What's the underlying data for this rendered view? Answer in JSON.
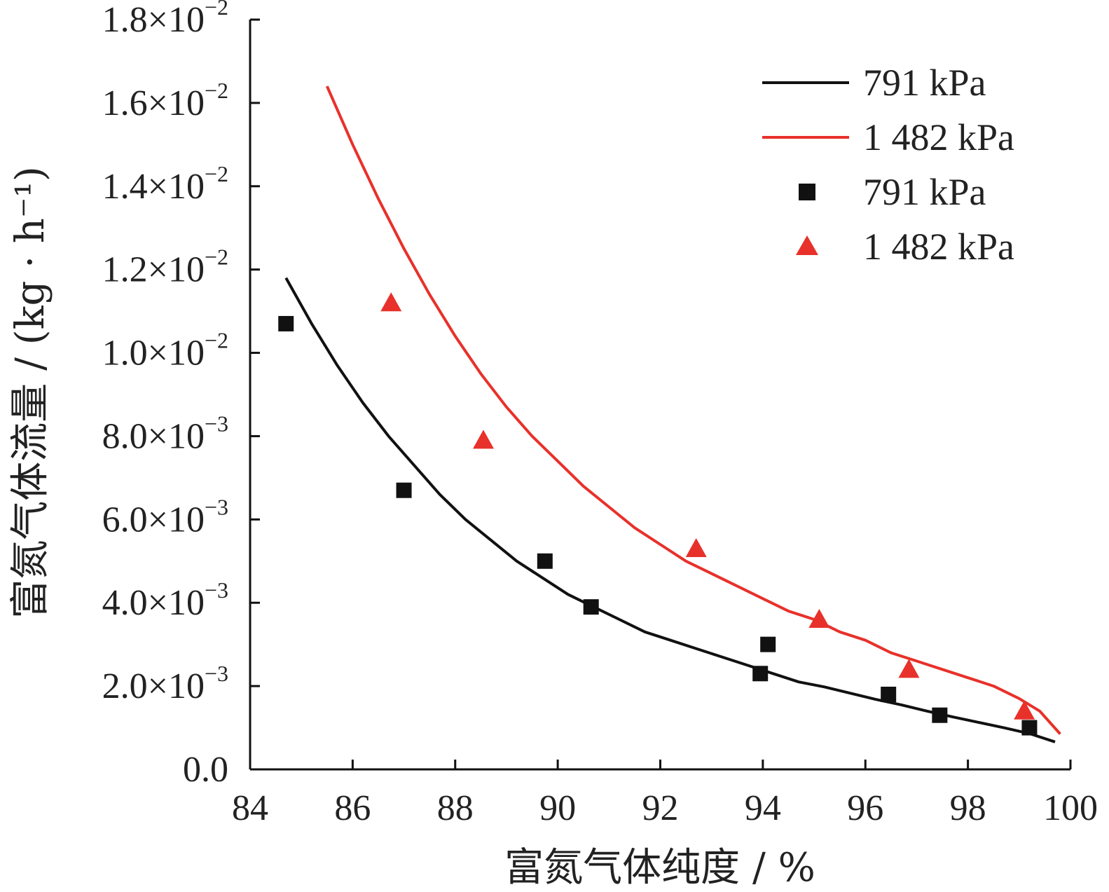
{
  "chart_data": {
    "type": "scatter",
    "xlabel": "富氮气体纯度 / %",
    "ylabel": "富氮气体流量 / (kg · h⁻¹)",
    "xlim": [
      84,
      100
    ],
    "ylim": [
      0,
      0.018
    ],
    "xticks": [
      {
        "value": 84,
        "label": "84"
      },
      {
        "value": 86,
        "label": "86"
      },
      {
        "value": 88,
        "label": "88"
      },
      {
        "value": 90,
        "label": "90"
      },
      {
        "value": 92,
        "label": "92"
      },
      {
        "value": 94,
        "label": "94"
      },
      {
        "value": 96,
        "label": "96"
      },
      {
        "value": 98,
        "label": "98"
      },
      {
        "value": 100,
        "label": "100"
      }
    ],
    "yticks": [
      {
        "value": 0,
        "mant": "0.0",
        "exp": ""
      },
      {
        "value": 0.002,
        "mant": "2.0×10",
        "exp": "−3"
      },
      {
        "value": 0.004,
        "mant": "4.0×10",
        "exp": "−3"
      },
      {
        "value": 0.006,
        "mant": "6.0×10",
        "exp": "−3"
      },
      {
        "value": 0.008,
        "mant": "8.0×10",
        "exp": "−3"
      },
      {
        "value": 0.01,
        "mant": "1.0×10",
        "exp": "−2"
      },
      {
        "value": 0.012,
        "mant": "1.2×10",
        "exp": "−2"
      },
      {
        "value": 0.014,
        "mant": "1.4×10",
        "exp": "−2"
      },
      {
        "value": 0.016,
        "mant": "1.6×10",
        "exp": "−2"
      },
      {
        "value": 0.018,
        "mant": "1.8×10",
        "exp": "−2"
      }
    ],
    "legend_position": "top-right",
    "series": [
      {
        "name": "791 kPa",
        "kind": "line",
        "color": "#111111",
        "points": [
          [
            84.7,
            0.0118
          ],
          [
            85.2,
            0.0107
          ],
          [
            85.7,
            0.0097
          ],
          [
            86.2,
            0.0088
          ],
          [
            86.7,
            0.008
          ],
          [
            87.2,
            0.0073
          ],
          [
            87.7,
            0.0066
          ],
          [
            88.2,
            0.006
          ],
          [
            88.7,
            0.0055
          ],
          [
            89.2,
            0.005
          ],
          [
            89.7,
            0.0046
          ],
          [
            90.2,
            0.0042
          ],
          [
            90.7,
            0.0039
          ],
          [
            91.2,
            0.0036
          ],
          [
            91.7,
            0.0033
          ],
          [
            92.2,
            0.0031
          ],
          [
            92.7,
            0.0029
          ],
          [
            93.2,
            0.0027
          ],
          [
            93.7,
            0.0025
          ],
          [
            94.2,
            0.0023
          ],
          [
            94.7,
            0.0021
          ],
          [
            95.2,
            0.00198
          ],
          [
            95.7,
            0.00183
          ],
          [
            96.2,
            0.00168
          ],
          [
            96.7,
            0.00155
          ],
          [
            97.2,
            0.0014
          ],
          [
            97.7,
            0.00126
          ],
          [
            98.2,
            0.00113
          ],
          [
            98.7,
            0.001
          ],
          [
            99.2,
            0.00086
          ],
          [
            99.7,
            0.00066
          ]
        ]
      },
      {
        "name": "1 482 kPa",
        "kind": "line",
        "color": "#e8312a",
        "points": [
          [
            85.5,
            0.0164
          ],
          [
            86.0,
            0.015
          ],
          [
            86.5,
            0.0137
          ],
          [
            87.0,
            0.0125
          ],
          [
            87.5,
            0.0114
          ],
          [
            88.0,
            0.0104
          ],
          [
            88.5,
            0.0095
          ],
          [
            89.0,
            0.0087
          ],
          [
            89.5,
            0.008
          ],
          [
            90.0,
            0.0074
          ],
          [
            90.5,
            0.0068
          ],
          [
            91.0,
            0.0063
          ],
          [
            91.5,
            0.0058
          ],
          [
            92.0,
            0.0054
          ],
          [
            92.5,
            0.005
          ],
          [
            93.0,
            0.0047
          ],
          [
            93.5,
            0.0044
          ],
          [
            94.0,
            0.0041
          ],
          [
            94.5,
            0.0038
          ],
          [
            95.0,
            0.0036
          ],
          [
            95.5,
            0.0033
          ],
          [
            96.0,
            0.0031
          ],
          [
            96.5,
            0.0028
          ],
          [
            97.0,
            0.0026
          ],
          [
            97.5,
            0.0024
          ],
          [
            98.0,
            0.0022
          ],
          [
            98.5,
            0.002
          ],
          [
            99.0,
            0.0017
          ],
          [
            99.4,
            0.0014
          ],
          [
            99.8,
            0.00085
          ]
        ]
      },
      {
        "name": "791 kPa",
        "kind": "scatter",
        "marker": "square",
        "color": "#111111",
        "points": [
          [
            84.7,
            0.0107
          ],
          [
            87.0,
            0.0067
          ],
          [
            89.75,
            0.005
          ],
          [
            90.65,
            0.0039
          ],
          [
            93.95,
            0.0023
          ],
          [
            94.1,
            0.003
          ],
          [
            96.45,
            0.0018
          ],
          [
            97.45,
            0.0013
          ],
          [
            99.2,
            0.001
          ]
        ]
      },
      {
        "name": "1 482 kPa",
        "kind": "scatter",
        "marker": "triangle",
        "color": "#e8312a",
        "points": [
          [
            86.75,
            0.0112
          ],
          [
            88.55,
            0.0079
          ],
          [
            92.7,
            0.0053
          ],
          [
            95.1,
            0.0036
          ],
          [
            96.85,
            0.0024
          ],
          [
            99.1,
            0.0014
          ]
        ]
      }
    ]
  }
}
